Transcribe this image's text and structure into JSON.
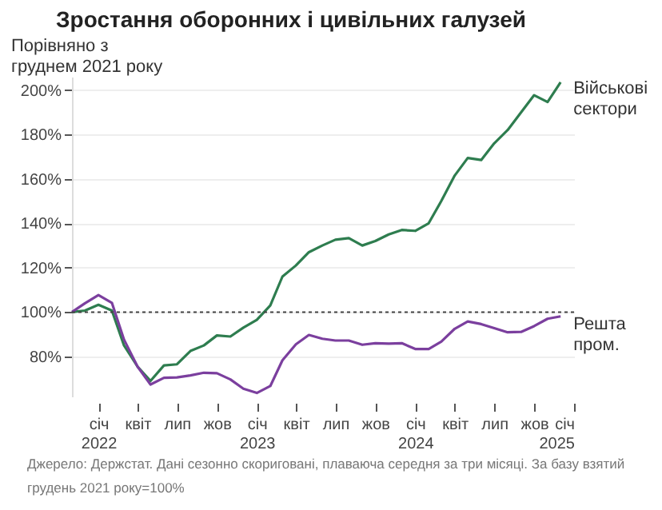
{
  "chart_data": {
    "type": "line",
    "title": "Зростання оборонних і цивільних галузей",
    "ylabel": "Порівняно з\nгруднем 2021 року",
    "annotations": [
      "Джерело: Держстат. Дані сезонно скориговані, плаваюча середня за три місяці. За базу взятий грудень 2021 року=100%"
    ],
    "x": [
      "2021-11",
      "2021-12",
      "2022-01",
      "2022-02",
      "2022-03",
      "2022-04",
      "2022-05",
      "2022-06",
      "2022-07",
      "2022-08",
      "2022-09",
      "2022-10",
      "2022-11",
      "2022-12",
      "2023-01",
      "2023-02",
      "2023-03",
      "2023-04",
      "2023-05",
      "2023-06",
      "2023-07",
      "2023-08",
      "2023-09",
      "2023-10",
      "2023-11",
      "2023-12",
      "2024-01",
      "2024-02",
      "2024-03",
      "2024-04",
      "2024-05",
      "2024-06",
      "2024-07",
      "2024-08",
      "2024-09",
      "2024-10",
      "2024-11",
      "2024-12"
    ],
    "series": [
      {
        "name": "Військові\nсектори",
        "color": "#2e7d4f",
        "values": [
          100,
          100.7,
          103.3,
          100.7,
          85,
          75.5,
          69,
          76,
          76.5,
          82.5,
          85,
          89.5,
          89,
          93,
          96.5,
          103,
          116,
          121,
          127,
          130,
          132.6,
          133.3,
          130,
          132,
          135,
          137,
          136.6,
          140,
          150,
          161.5,
          169.4,
          168.5,
          176,
          182,
          190,
          197.7,
          194.6,
          203.5
        ]
      },
      {
        "name": "Решта\nпром.",
        "color": "#7b3f9e",
        "values": [
          100,
          104,
          107.7,
          104.2,
          87.6,
          75.5,
          67.4,
          70.4,
          70.6,
          71.5,
          72.7,
          72.5,
          69.7,
          65.5,
          63.6,
          66.7,
          78.3,
          85.5,
          89.7,
          88,
          87.2,
          87.2,
          85.3,
          86,
          85.8,
          86,
          83.4,
          83.4,
          86.7,
          92.5,
          95.8,
          94.6,
          92.8,
          90.9,
          91.1,
          93.7,
          97,
          98.1
        ]
      }
    ],
    "xlim": [
      "2021-11",
      "2025-01"
    ],
    "xticks": [
      {
        "value": "2022-01",
        "label": "січ\n2022"
      },
      {
        "value": "2022-04",
        "label": "квіт"
      },
      {
        "value": "2022-07",
        "label": "лип"
      },
      {
        "value": "2022-10",
        "label": "жов"
      },
      {
        "value": "2023-01",
        "label": "січ\n2023"
      },
      {
        "value": "2023-04",
        "label": "квіт"
      },
      {
        "value": "2023-07",
        "label": "лип"
      },
      {
        "value": "2023-10",
        "label": "жов"
      },
      {
        "value": "2024-01",
        "label": "січ\n2024"
      },
      {
        "value": "2024-04",
        "label": "квіт"
      },
      {
        "value": "2024-07",
        "label": "лип"
      },
      {
        "value": "2024-10",
        "label": "жов"
      },
      {
        "value": "2025-01",
        "label": "січ\n2025"
      }
    ],
    "ylim": [
      62,
      206
    ],
    "yticks": [
      {
        "value": 80,
        "label": "80%"
      },
      {
        "value": 100,
        "label": "100%"
      },
      {
        "value": 120,
        "label": "120%"
      },
      {
        "value": 140,
        "label": "140%"
      },
      {
        "value": 160,
        "label": "160%"
      },
      {
        "value": 180,
        "label": "180%"
      },
      {
        "value": 200,
        "label": "200%"
      }
    ],
    "ref_lines": [
      {
        "axis": "y",
        "value": 100,
        "color": "#444444",
        "line_style": "dotted"
      }
    ],
    "grid": "y",
    "line_style": "solid",
    "marker": "none"
  }
}
